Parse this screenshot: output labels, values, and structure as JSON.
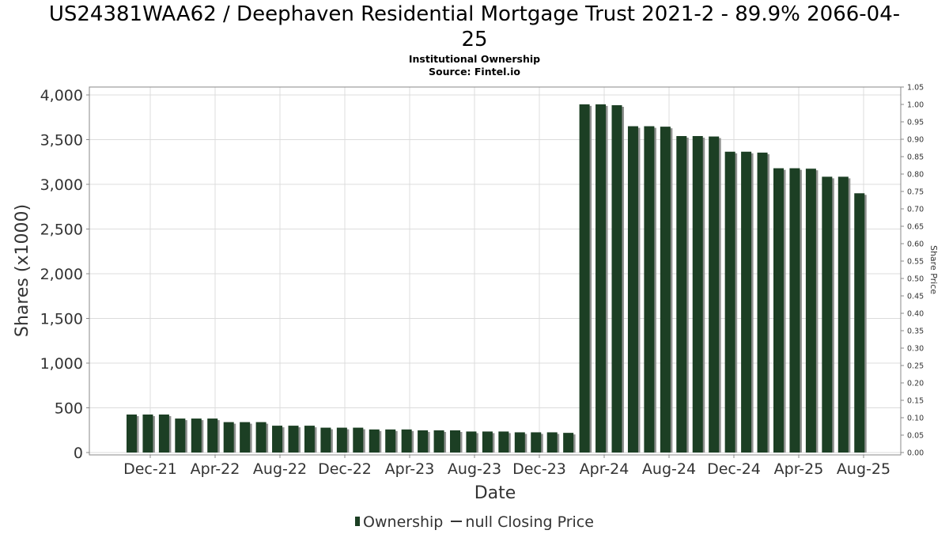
{
  "header": {
    "title_line1": "US24381WAA62 / Deephaven Residential Mortgage Trust 2021-2 - 89.9% 2066-04-",
    "title_line2": "25",
    "subtitle_line1": "Institutional Ownership",
    "subtitle_line2": "Source: Fintel.io"
  },
  "legend": {
    "ownership_label": "Ownership",
    "price_label": "null Closing Price"
  },
  "colors": {
    "bar": "#1c3f24",
    "bar_shadow": "#8f918f",
    "grid": "#dcdcdc",
    "plot_border": "#888888"
  },
  "chart_data": {
    "type": "bar",
    "xlabel": "Date",
    "ylabel": "Shares (x1000)",
    "y2label": "Share Price",
    "ylim": [
      0,
      4100
    ],
    "y2lim": [
      0,
      1.05
    ],
    "grid": true,
    "legend_position": "bottom-center",
    "y_ticks": [
      "0",
      "500",
      "1,000",
      "1,500",
      "2,000",
      "2,500",
      "3,000",
      "3,500",
      "4,000"
    ],
    "y_tick_values": [
      0,
      500,
      1000,
      1500,
      2000,
      2500,
      3000,
      3500,
      4000
    ],
    "y2_ticks": [
      "0.00",
      "0.05",
      "0.10",
      "0.15",
      "0.20",
      "0.25",
      "0.30",
      "0.35",
      "0.40",
      "0.45",
      "0.50",
      "0.55",
      "0.60",
      "0.65",
      "0.70",
      "0.75",
      "0.80",
      "0.85",
      "0.90",
      "0.95",
      "1.00",
      "1.05"
    ],
    "x_ticks": [
      "Dec-21",
      "Apr-22",
      "Aug-22",
      "Dec-22",
      "Apr-23",
      "Aug-23",
      "Dec-23",
      "Apr-24",
      "Aug-24",
      "Dec-24",
      "Apr-25",
      "Aug-25"
    ],
    "series": [
      {
        "name": "Ownership",
        "values": [
          425,
          425,
          425,
          380,
          380,
          380,
          340,
          340,
          340,
          300,
          300,
          300,
          278,
          278,
          278,
          258,
          258,
          258,
          248,
          248,
          248,
          235,
          235,
          235,
          226,
          226,
          226,
          220,
          3895,
          3895,
          3885,
          3650,
          3650,
          3645,
          3540,
          3540,
          3535,
          3365,
          3365,
          3355,
          3180,
          3180,
          3175,
          3085,
          3085,
          2900
        ]
      }
    ]
  }
}
